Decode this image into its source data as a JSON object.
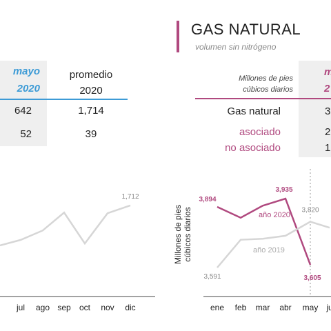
{
  "colors": {
    "blue": "#3d9bd6",
    "magenta": "#b0497f",
    "gray_line": "#d6d6d6",
    "band": "#efefef"
  },
  "left_table": {
    "col1_header": [
      "mayo",
      "2020"
    ],
    "col2_header": [
      "promedio",
      "2020"
    ],
    "rows": [
      {
        "col1": "642",
        "col2": "1,714"
      },
      {
        "col1": "52",
        "col2": "39"
      }
    ]
  },
  "left_chart_labels": {
    "end_value": "1,712"
  },
  "gas": {
    "title": "GAS NATURAL",
    "subtitle": "volumen sin nitrógeno",
    "units_header": [
      "Millones de pies",
      "cúbicos diarios"
    ],
    "col1_header": [
      "m",
      "2"
    ],
    "rows": [
      {
        "label": "Gas natural",
        "value": "3"
      },
      {
        "label": "asociado",
        "value": "2"
      },
      {
        "label": "no asociado",
        "value": "1,"
      }
    ]
  },
  "chart_data": [
    {
      "type": "line",
      "x": [
        "jul",
        "ago",
        "sep",
        "oct",
        "nov",
        "dic"
      ],
      "series": [
        {
          "values": [
            1606,
            1635,
            1690,
            1595,
            1688,
            1712
          ]
        }
      ],
      "ylim": [
        1400,
        1750
      ],
      "annotations": [
        {
          "x": "dic",
          "text": "1,712"
        }
      ]
    },
    {
      "type": "line",
      "x": [
        "ene",
        "feb",
        "mar",
        "abr",
        "may",
        "ju"
      ],
      "ylabel": "Millones de pies cúbicos diarios",
      "series": [
        {
          "name": "año 2020",
          "values": [
            3894,
            3840,
            3900,
            3935,
            3605,
            null
          ]
        },
        {
          "name": "año 2019",
          "values": [
            3591,
            3730,
            3735,
            3750,
            3820,
            3790
          ]
        }
      ],
      "ylim": [
        3550,
        3980
      ],
      "annotations": [
        {
          "x": "ene",
          "series": "año 2020",
          "text": "3,894"
        },
        {
          "x": "abr",
          "series": "año 2020",
          "text": "3,935"
        },
        {
          "x": "may",
          "series": "año 2020",
          "text": "3,605"
        },
        {
          "x": "may",
          "series": "año 2019",
          "text": "3,820"
        },
        {
          "x": "ene",
          "series": "año 2019",
          "text": "3,591"
        }
      ]
    }
  ]
}
